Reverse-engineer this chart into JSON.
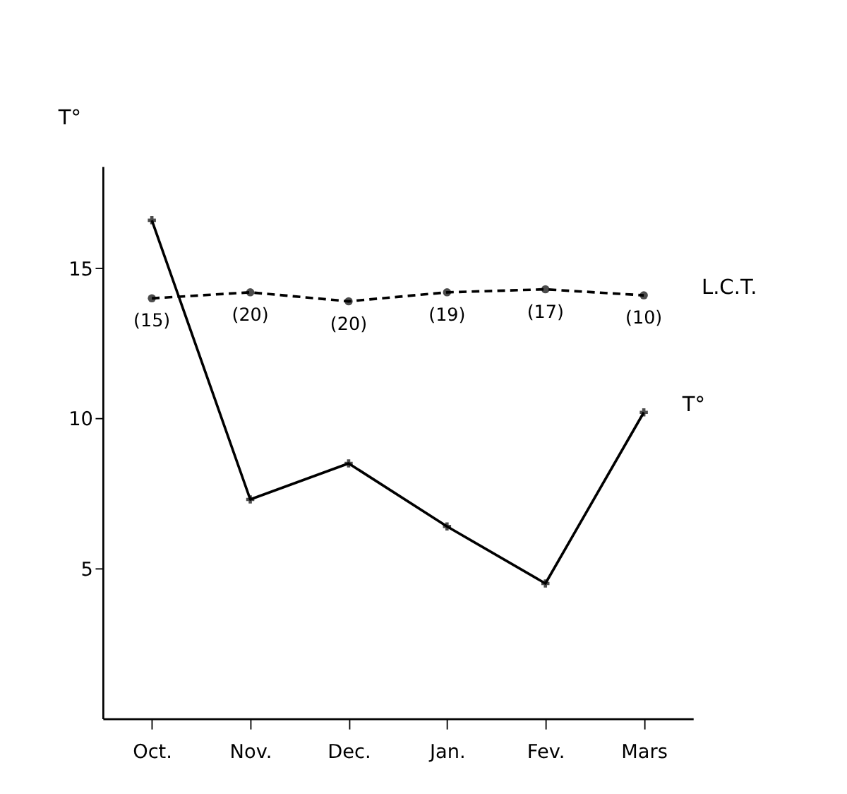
{
  "chart_data": {
    "type": "line",
    "ylabel": "T°",
    "categories": [
      "Oct.",
      "Nov.",
      "Dec.",
      "Jan.",
      "Fev.",
      "Mars"
    ],
    "series": [
      {
        "name": "L.C.T.",
        "color": "#000000",
        "values": [
          14.0,
          14.2,
          13.9,
          14.2,
          14.3,
          14.1
        ],
        "marker": "circle",
        "line_style": "dashed"
      },
      {
        "name": "T°",
        "color": "#000000",
        "values": [
          16.6,
          7.3,
          8.5,
          6.4,
          4.5,
          10.2
        ],
        "marker": "cross",
        "line_style": "solid"
      }
    ],
    "annotations": [
      {
        "text": "(15)",
        "x": "Oct.",
        "y": 14.0
      },
      {
        "text": "(20)",
        "x": "Nov.",
        "y": 14.2
      },
      {
        "text": "(20)",
        "x": "Dec.",
        "y": 13.9
      },
      {
        "text": "(19)",
        "x": "Jan.",
        "y": 14.2
      },
      {
        "text": "(17)",
        "x": "Fev.",
        "y": 14.3
      },
      {
        "text": "(10)",
        "x": "Mars",
        "y": 14.1
      }
    ],
    "ylim": [
      0,
      18.4
    ],
    "yticks": [
      5,
      10,
      15
    ],
    "grid": false
  }
}
